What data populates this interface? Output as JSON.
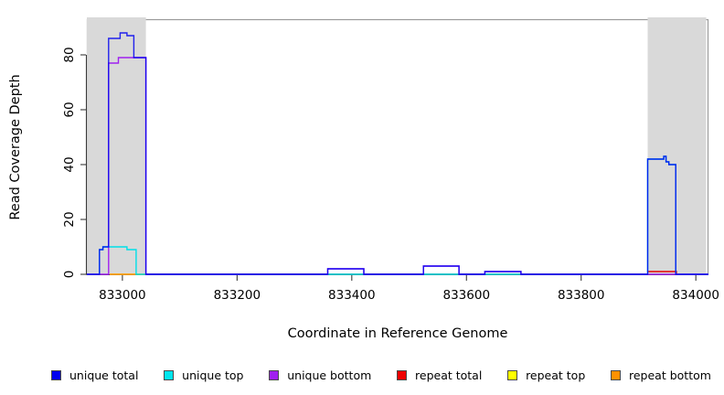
{
  "chart_data": {
    "type": "step-line",
    "title": "",
    "xlabel": "Coordinate in Reference Genome",
    "ylabel": "Read Coverage Depth",
    "xlim": [
      832938,
      834022
    ],
    "ylim": [
      0,
      93
    ],
    "xticks": [
      833000,
      833200,
      833400,
      833600,
      833800,
      834000
    ],
    "yticks": [
      0,
      20,
      40,
      60,
      80
    ],
    "grid": false,
    "background": "#ffffff",
    "box_color": "#9a9a9a",
    "axis_color": "#3a3a3a",
    "shaded_regions": [
      {
        "from": 832938,
        "to": 833041,
        "color": "#d9d9d9"
      },
      {
        "from": 833916,
        "to": 834018,
        "color": "#d9d9d9"
      }
    ],
    "series": [
      {
        "name": "repeat total",
        "color": "#e60000",
        "opacity": 1,
        "points": [
          [
            833917,
            1
          ],
          [
            833966,
            0
          ]
        ]
      },
      {
        "name": "repeat top",
        "color": "#ffff00",
        "opacity": 1,
        "points": [
          [
            832978,
            0
          ],
          [
            833041,
            0
          ]
        ]
      },
      {
        "name": "repeat bottom",
        "color": "#ff9100",
        "opacity": 1,
        "points": [
          [
            832978,
            0
          ],
          [
            833041,
            0
          ]
        ]
      },
      {
        "name": "unique top",
        "color": "#00dfe8",
        "opacity": 1,
        "points": [
          [
            832938,
            0
          ],
          [
            832960,
            9
          ],
          [
            832966,
            10
          ],
          [
            833008,
            9
          ],
          [
            833024,
            0
          ],
          [
            833916,
            42
          ],
          [
            833944,
            43
          ],
          [
            833948,
            41
          ],
          [
            833953,
            40
          ],
          [
            833965,
            0
          ],
          [
            834022,
            0
          ]
        ]
      },
      {
        "name": "unique bottom",
        "color": "#a020f0",
        "opacity": 1,
        "points": [
          [
            832938,
            0
          ],
          [
            832976,
            77
          ],
          [
            832993,
            79
          ],
          [
            833041,
            0
          ],
          [
            833358,
            2
          ],
          [
            833421,
            0
          ],
          [
            833525,
            3
          ],
          [
            833587,
            0
          ],
          [
            833632,
            1
          ],
          [
            833695,
            0
          ],
          [
            834022,
            0
          ]
        ]
      },
      {
        "name": "unique total",
        "color": "#0000f0",
        "opacity": 0.85,
        "points": [
          [
            832938,
            0
          ],
          [
            832960,
            9
          ],
          [
            832966,
            10
          ],
          [
            832976,
            86
          ],
          [
            832996,
            88
          ],
          [
            833008,
            87
          ],
          [
            833020,
            79
          ],
          [
            833041,
            0
          ],
          [
            833358,
            2
          ],
          [
            833421,
            0
          ],
          [
            833525,
            3
          ],
          [
            833587,
            0
          ],
          [
            833632,
            1
          ],
          [
            833695,
            0
          ],
          [
            833916,
            42
          ],
          [
            833944,
            43
          ],
          [
            833948,
            41
          ],
          [
            833953,
            40
          ],
          [
            833965,
            0
          ],
          [
            834022,
            0
          ]
        ]
      }
    ],
    "legend": [
      {
        "label": "unique total",
        "color": "#0000ee"
      },
      {
        "label": "unique top",
        "color": "#00e5ee"
      },
      {
        "label": "unique bottom",
        "color": "#a020f0"
      },
      {
        "label": "repeat total",
        "color": "#ee0000"
      },
      {
        "label": "repeat top",
        "color": "#ffff00"
      },
      {
        "label": "repeat bottom",
        "color": "#ff9100"
      }
    ],
    "legend_position": "bottom"
  }
}
